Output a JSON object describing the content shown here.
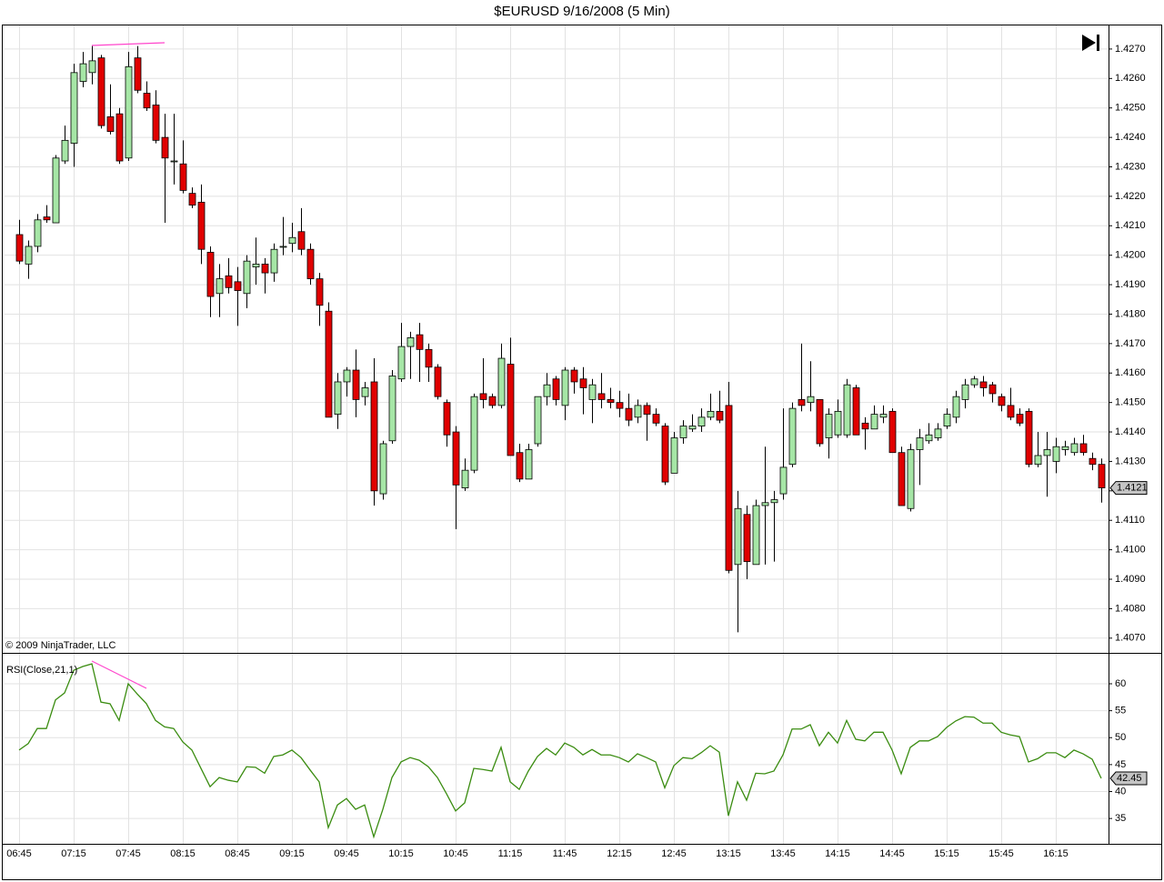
{
  "chart_data": [
    {
      "type": "candlestick",
      "title": "$EURUSD  9/16/2008 (5 Min)",
      "annotation": "© 2009 NinjaTrader, LLC",
      "categories": [
        "06:45",
        null,
        null,
        null,
        null,
        null,
        "07:15",
        null,
        null,
        null,
        null,
        null,
        "07:45",
        null,
        null,
        null,
        null,
        null,
        "08:15",
        null,
        null,
        null,
        null,
        null,
        "08:45",
        null,
        null,
        null,
        null,
        null,
        "09:15",
        null,
        null,
        null,
        null,
        null,
        "09:45",
        null,
        null,
        null,
        null,
        null,
        "10:15",
        null,
        null,
        null,
        null,
        null,
        "10:45",
        null,
        null,
        null,
        null,
        null,
        "11:15",
        null,
        null,
        null,
        null,
        null,
        "11:45",
        null,
        null,
        null,
        null,
        null,
        "12:15",
        null,
        null,
        null,
        null,
        null,
        "12:45",
        null,
        null,
        null,
        null,
        null,
        "13:15",
        null,
        null,
        null,
        null,
        null,
        "13:45",
        null,
        null,
        null,
        null,
        null,
        "14:15",
        null,
        null,
        null,
        null,
        null,
        "14:45",
        null,
        null,
        null,
        null,
        null,
        "15:15",
        null,
        null,
        null,
        null,
        null,
        "15:45",
        null,
        null,
        null,
        null,
        null,
        "16:15",
        null,
        null,
        null,
        null,
        null
      ],
      "open": [
        1.4207,
        1.4197,
        1.4203,
        1.4213,
        1.4211,
        1.4232,
        1.4238,
        1.4259,
        1.4262,
        1.4267,
        1.4247,
        1.4248,
        1.4233,
        1.4267,
        1.4255,
        1.4251,
        1.424,
        1.4232,
        1.4231,
        1.4221,
        1.4218,
        1.4201,
        1.4187,
        1.4193,
        1.4191,
        1.4187,
        1.4196,
        1.4197,
        1.4194,
        1.4203,
        1.4204,
        1.4208,
        1.4202,
        1.4192,
        1.4181,
        1.4146,
        1.4157,
        1.4161,
        1.4152,
        1.4157,
        1.4119,
        1.4137,
        1.4158,
        1.4169,
        1.4173,
        1.4168,
        1.4162,
        1.415,
        1.414,
        1.4121,
        1.4127,
        1.4153,
        1.4152,
        1.4149,
        1.4163,
        1.4133,
        1.4124,
        1.4136,
        1.4152,
        1.4158,
        1.4149,
        1.4161,
        1.4158,
        1.4151,
        1.4153,
        1.4151,
        1.415,
        1.4148,
        1.4145,
        1.4149,
        1.4146,
        1.4142,
        1.4126,
        1.4138,
        1.4141,
        1.4142,
        1.4145,
        1.4147,
        1.4149,
        1.4095,
        1.4112,
        1.4095,
        1.4115,
        1.4116,
        1.4119,
        1.4129,
        1.4151,
        1.415,
        1.4151,
        1.4138,
        1.4139,
        1.4139,
        1.4155,
        1.4143,
        1.4141,
        1.4145,
        1.4147,
        1.4133,
        1.4114,
        1.4134,
        1.4137,
        1.4138,
        1.4142,
        1.4145,
        1.4151,
        1.4156,
        1.4157,
        1.4156,
        1.4152,
        1.4149,
        1.4146,
        1.4147,
        1.4129,
        1.4132,
        1.413,
        1.4134,
        1.4133,
        1.4136,
        1.4131,
        1.4129
      ],
      "high": [
        1.4212,
        1.4205,
        1.4214,
        1.4217,
        1.4234,
        1.4244,
        1.4265,
        1.4269,
        1.4271,
        1.4268,
        1.4258,
        1.425,
        1.4269,
        1.4271,
        1.4259,
        1.4256,
        1.4248,
        1.4248,
        1.4239,
        1.4223,
        1.4224,
        1.4203,
        1.4197,
        1.4199,
        1.4196,
        1.42,
        1.4206,
        1.4199,
        1.4204,
        1.4213,
        1.4211,
        1.4216,
        1.4204,
        1.4194,
        1.4184,
        1.416,
        1.4162,
        1.4168,
        1.4157,
        1.4165,
        1.4137,
        1.4161,
        1.4177,
        1.4174,
        1.4177,
        1.417,
        1.4163,
        1.4151,
        1.4142,
        1.4131,
        1.4153,
        1.4165,
        1.4153,
        1.417,
        1.4172,
        1.4136,
        1.4136,
        1.4152,
        1.416,
        1.4159,
        1.4162,
        1.4162,
        1.4162,
        1.4158,
        1.416,
        1.4155,
        1.4154,
        1.4153,
        1.4151,
        1.415,
        1.4148,
        1.4143,
        1.414,
        1.4144,
        1.4146,
        1.4148,
        1.4153,
        1.4154,
        1.4157,
        1.412,
        1.4115,
        1.4117,
        1.4135,
        1.412,
        1.4148,
        1.415,
        1.417,
        1.4164,
        1.4151,
        1.4148,
        1.4151,
        1.4158,
        1.4156,
        1.4145,
        1.4149,
        1.4149,
        1.4148,
        1.4135,
        1.4136,
        1.4141,
        1.4143,
        1.4143,
        1.4148,
        1.4154,
        1.4158,
        1.4159,
        1.4159,
        1.4157,
        1.4153,
        1.4155,
        1.4148,
        1.4148,
        1.414,
        1.414,
        1.4138,
        1.4137,
        1.4138,
        1.4139,
        1.4133,
        1.4131
      ],
      "low": [
        1.4197,
        1.4192,
        1.4201,
        1.4211,
        1.4211,
        1.4231,
        1.423,
        1.4257,
        1.4258,
        1.4243,
        1.4241,
        1.4231,
        1.4232,
        1.4255,
        1.4249,
        1.4238,
        1.4211,
        1.4224,
        1.4221,
        1.4216,
        1.4197,
        1.4179,
        1.4179,
        1.4187,
        1.4176,
        1.4182,
        1.419,
        1.4187,
        1.4191,
        1.42,
        1.4201,
        1.42,
        1.419,
        1.4176,
        1.4145,
        1.4141,
        1.4152,
        1.4145,
        1.4149,
        1.4115,
        1.4117,
        1.4136,
        1.4157,
        1.4158,
        1.4157,
        1.4157,
        1.4151,
        1.4135,
        1.4107,
        1.412,
        1.4126,
        1.4148,
        1.4148,
        1.4148,
        1.4132,
        1.4123,
        1.4124,
        1.4135,
        1.4149,
        1.4149,
        1.4144,
        1.4153,
        1.4146,
        1.4143,
        1.4148,
        1.4148,
        1.4145,
        1.4142,
        1.4143,
        1.4137,
        1.4142,
        1.4122,
        1.4126,
        1.4136,
        1.414,
        1.414,
        1.4144,
        1.4143,
        1.4092,
        1.4072,
        1.409,
        1.4095,
        1.4095,
        1.4096,
        1.4117,
        1.4128,
        1.4147,
        1.4147,
        1.4135,
        1.4131,
        1.4138,
        1.4138,
        1.4139,
        1.4134,
        1.4141,
        1.4143,
        1.4133,
        1.4115,
        1.4113,
        1.4122,
        1.4136,
        1.4137,
        1.4141,
        1.4143,
        1.4148,
        1.4155,
        1.4152,
        1.415,
        1.4147,
        1.4144,
        1.4142,
        1.4128,
        1.4128,
        1.4118,
        1.4126,
        1.4132,
        1.4132,
        1.4132,
        1.4127,
        1.4116
      ],
      "close": [
        1.4198,
        1.4203,
        1.4212,
        1.4212,
        1.4233,
        1.4239,
        1.4262,
        1.4265,
        1.4266,
        1.4244,
        1.4242,
        1.4232,
        1.4264,
        1.4256,
        1.425,
        1.4239,
        1.4233,
        1.4232,
        1.4222,
        1.4217,
        1.4202,
        1.4186,
        1.4192,
        1.4189,
        1.4188,
        1.4198,
        1.4197,
        1.4194,
        1.4202,
        1.4203,
        1.4206,
        1.4202,
        1.4192,
        1.4183,
        1.4145,
        1.4157,
        1.4161,
        1.4151,
        1.4155,
        1.412,
        1.4136,
        1.4159,
        1.4169,
        1.4172,
        1.4168,
        1.4162,
        1.4152,
        1.4139,
        1.4122,
        1.4127,
        1.4152,
        1.4151,
        1.4149,
        1.4165,
        1.4132,
        1.4124,
        1.4134,
        1.4152,
        1.4156,
        1.4151,
        1.4161,
        1.4157,
        1.4155,
        1.4156,
        1.4151,
        1.415,
        1.4148,
        1.4144,
        1.4149,
        1.4146,
        1.4143,
        1.4123,
        1.4138,
        1.4142,
        1.4142,
        1.4145,
        1.4147,
        1.4144,
        1.4093,
        1.4114,
        1.4096,
        1.4115,
        1.4116,
        1.4117,
        1.4128,
        1.4148,
        1.4149,
        1.4152,
        1.4136,
        1.4146,
        1.4147,
        1.4156,
        1.4139,
        1.4141,
        1.4146,
        1.4146,
        1.4133,
        1.4115,
        1.4134,
        1.4138,
        1.4139,
        1.4141,
        1.4146,
        1.4152,
        1.4156,
        1.4158,
        1.4155,
        1.4153,
        1.4149,
        1.4145,
        1.4143,
        1.4129,
        1.4132,
        1.4134,
        1.4135,
        1.4135,
        1.4136,
        1.4133,
        1.4129,
        1.4121
      ],
      "up_color": "#a6e6a6",
      "down_color": "#e00000",
      "last_price_label": "1.4121",
      "ylim": [
        1.4065,
        1.4278
      ],
      "yticks": [
        {
          "value": 1.407,
          "label": "1.4070"
        },
        {
          "value": 1.408,
          "label": "1.4080"
        },
        {
          "value": 1.409,
          "label": "1.4090"
        },
        {
          "value": 1.41,
          "label": "1.4100"
        },
        {
          "value": 1.411,
          "label": "1.4110"
        },
        {
          "value": 1.412,
          "label": "1.4120"
        },
        {
          "value": 1.413,
          "label": "1.4130"
        },
        {
          "value": 1.414,
          "label": "1.4140"
        },
        {
          "value": 1.415,
          "label": "1.4150"
        },
        {
          "value": 1.416,
          "label": "1.4160"
        },
        {
          "value": 1.417,
          "label": "1.4170"
        },
        {
          "value": 1.418,
          "label": "1.4180"
        },
        {
          "value": 1.419,
          "label": "1.4190"
        },
        {
          "value": 1.42,
          "label": "1.4200"
        },
        {
          "value": 1.421,
          "label": "1.4210"
        },
        {
          "value": 1.422,
          "label": "1.4220"
        },
        {
          "value": 1.423,
          "label": "1.4230"
        },
        {
          "value": 1.424,
          "label": "1.4240"
        },
        {
          "value": 1.425,
          "label": "1.4250"
        },
        {
          "value": 1.426,
          "label": "1.4260"
        },
        {
          "value": 1.427,
          "label": "1.4270"
        }
      ],
      "grid": true
    },
    {
      "type": "line",
      "title": "RSI(Close,21,1)",
      "color": "#3a8c10",
      "values": [
        47.7,
        48.9,
        51.7,
        51.7,
        57,
        58.3,
        62.5,
        63.2,
        63.7,
        56.6,
        56.3,
        53.2,
        60,
        58.1,
        56.3,
        53.2,
        52,
        51.7,
        49.2,
        47.7,
        44.3,
        40.9,
        42.6,
        42.1,
        41.8,
        44.6,
        44.5,
        43.4,
        46.5,
        46.8,
        47.7,
        46.3,
        44,
        41.8,
        33.3,
        37.5,
        38.7,
        36.7,
        37.5,
        31.6,
        36.7,
        42.6,
        45.5,
        46.3,
        45.8,
        44.6,
        42.6,
        39.6,
        36.4,
        37.9,
        44.3,
        44.1,
        43.8,
        48.2,
        41.8,
        40.4,
        43.8,
        46.5,
        48,
        46.8,
        49,
        48.2,
        46.8,
        47.8,
        46.8,
        46.8,
        46.3,
        45.5,
        47,
        46.3,
        45.5,
        40.7,
        44.8,
        46.3,
        46.1,
        47.2,
        48.5,
        47.3,
        35.5,
        41.8,
        38.4,
        43.4,
        43.3,
        43.8,
        46.8,
        51.6,
        51.6,
        52.4,
        48.5,
        51,
        49,
        53.2,
        49.7,
        49.4,
        51,
        51,
        47.7,
        43.3,
        48.2,
        49.4,
        49.4,
        50.2,
        51.9,
        53.1,
        53.9,
        53.8,
        52.7,
        52.7,
        51,
        50.5,
        50.2,
        45.5,
        46.1,
        47.2,
        47.2,
        46.3,
        47.7,
        47,
        46,
        42.45
      ],
      "last_value_label": "42.45",
      "ylim": [
        30.3,
        65.4
      ],
      "yticks": [
        35,
        40,
        45,
        50,
        55,
        60
      ],
      "grid": true
    }
  ]
}
